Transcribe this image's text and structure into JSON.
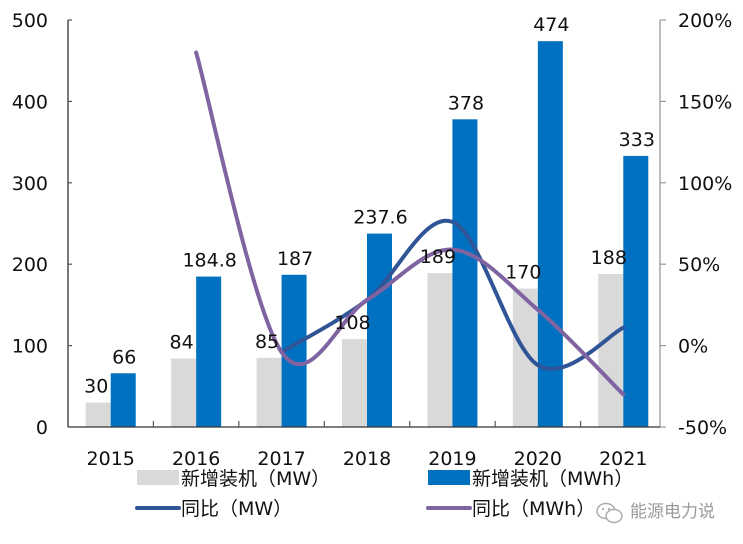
{
  "chart_data": {
    "type": "bar",
    "title": "",
    "categories": [
      "2015",
      "2016",
      "2017",
      "2018",
      "2019",
      "2020",
      "2021"
    ],
    "series": [
      {
        "name": "新增装机（MW）",
        "kind": "bar",
        "axis": "left",
        "color": "#d9d9d9",
        "values": [
          30,
          84,
          85,
          108,
          189,
          170,
          188
        ],
        "labels": [
          "30",
          "84",
          "85",
          "108",
          "189",
          "170",
          "188"
        ]
      },
      {
        "name": "新增装机（MWh）",
        "kind": "bar",
        "axis": "left",
        "color": "#0070c0",
        "values": [
          66,
          184.8,
          187,
          237.6,
          378,
          474,
          333
        ],
        "labels": [
          "66",
          "184.8",
          "187",
          "237.6",
          "378",
          "474",
          "333"
        ]
      },
      {
        "name": "同比（MW）",
        "kind": "line",
        "axis": "right",
        "color": "#2f5597",
        "values": [
          null,
          null,
          -4,
          28,
          76,
          -12,
          11
        ]
      },
      {
        "name": "同比（MWh）",
        "kind": "line",
        "axis": "right",
        "color": "#8064a2",
        "values": [
          null,
          180,
          -4,
          28,
          59,
          22,
          -30
        ]
      }
    ],
    "left_axis": {
      "ylim": [
        0,
        500
      ],
      "ticks": [
        "0",
        "100",
        "200",
        "300",
        "400",
        "500"
      ],
      "tick_values": [
        0,
        100,
        200,
        300,
        400,
        500
      ]
    },
    "right_axis": {
      "ylim": [
        -50,
        200
      ],
      "ticks": [
        "-50%",
        "0%",
        "50%",
        "100%",
        "150%",
        "200%"
      ],
      "tick_values": [
        -50,
        0,
        50,
        100,
        150,
        200
      ]
    },
    "xlabel": "",
    "ylabel": "",
    "grid": false,
    "legend": "bottom"
  },
  "watermark": {
    "text": "能源电力说",
    "icon": "wechat-icon"
  }
}
